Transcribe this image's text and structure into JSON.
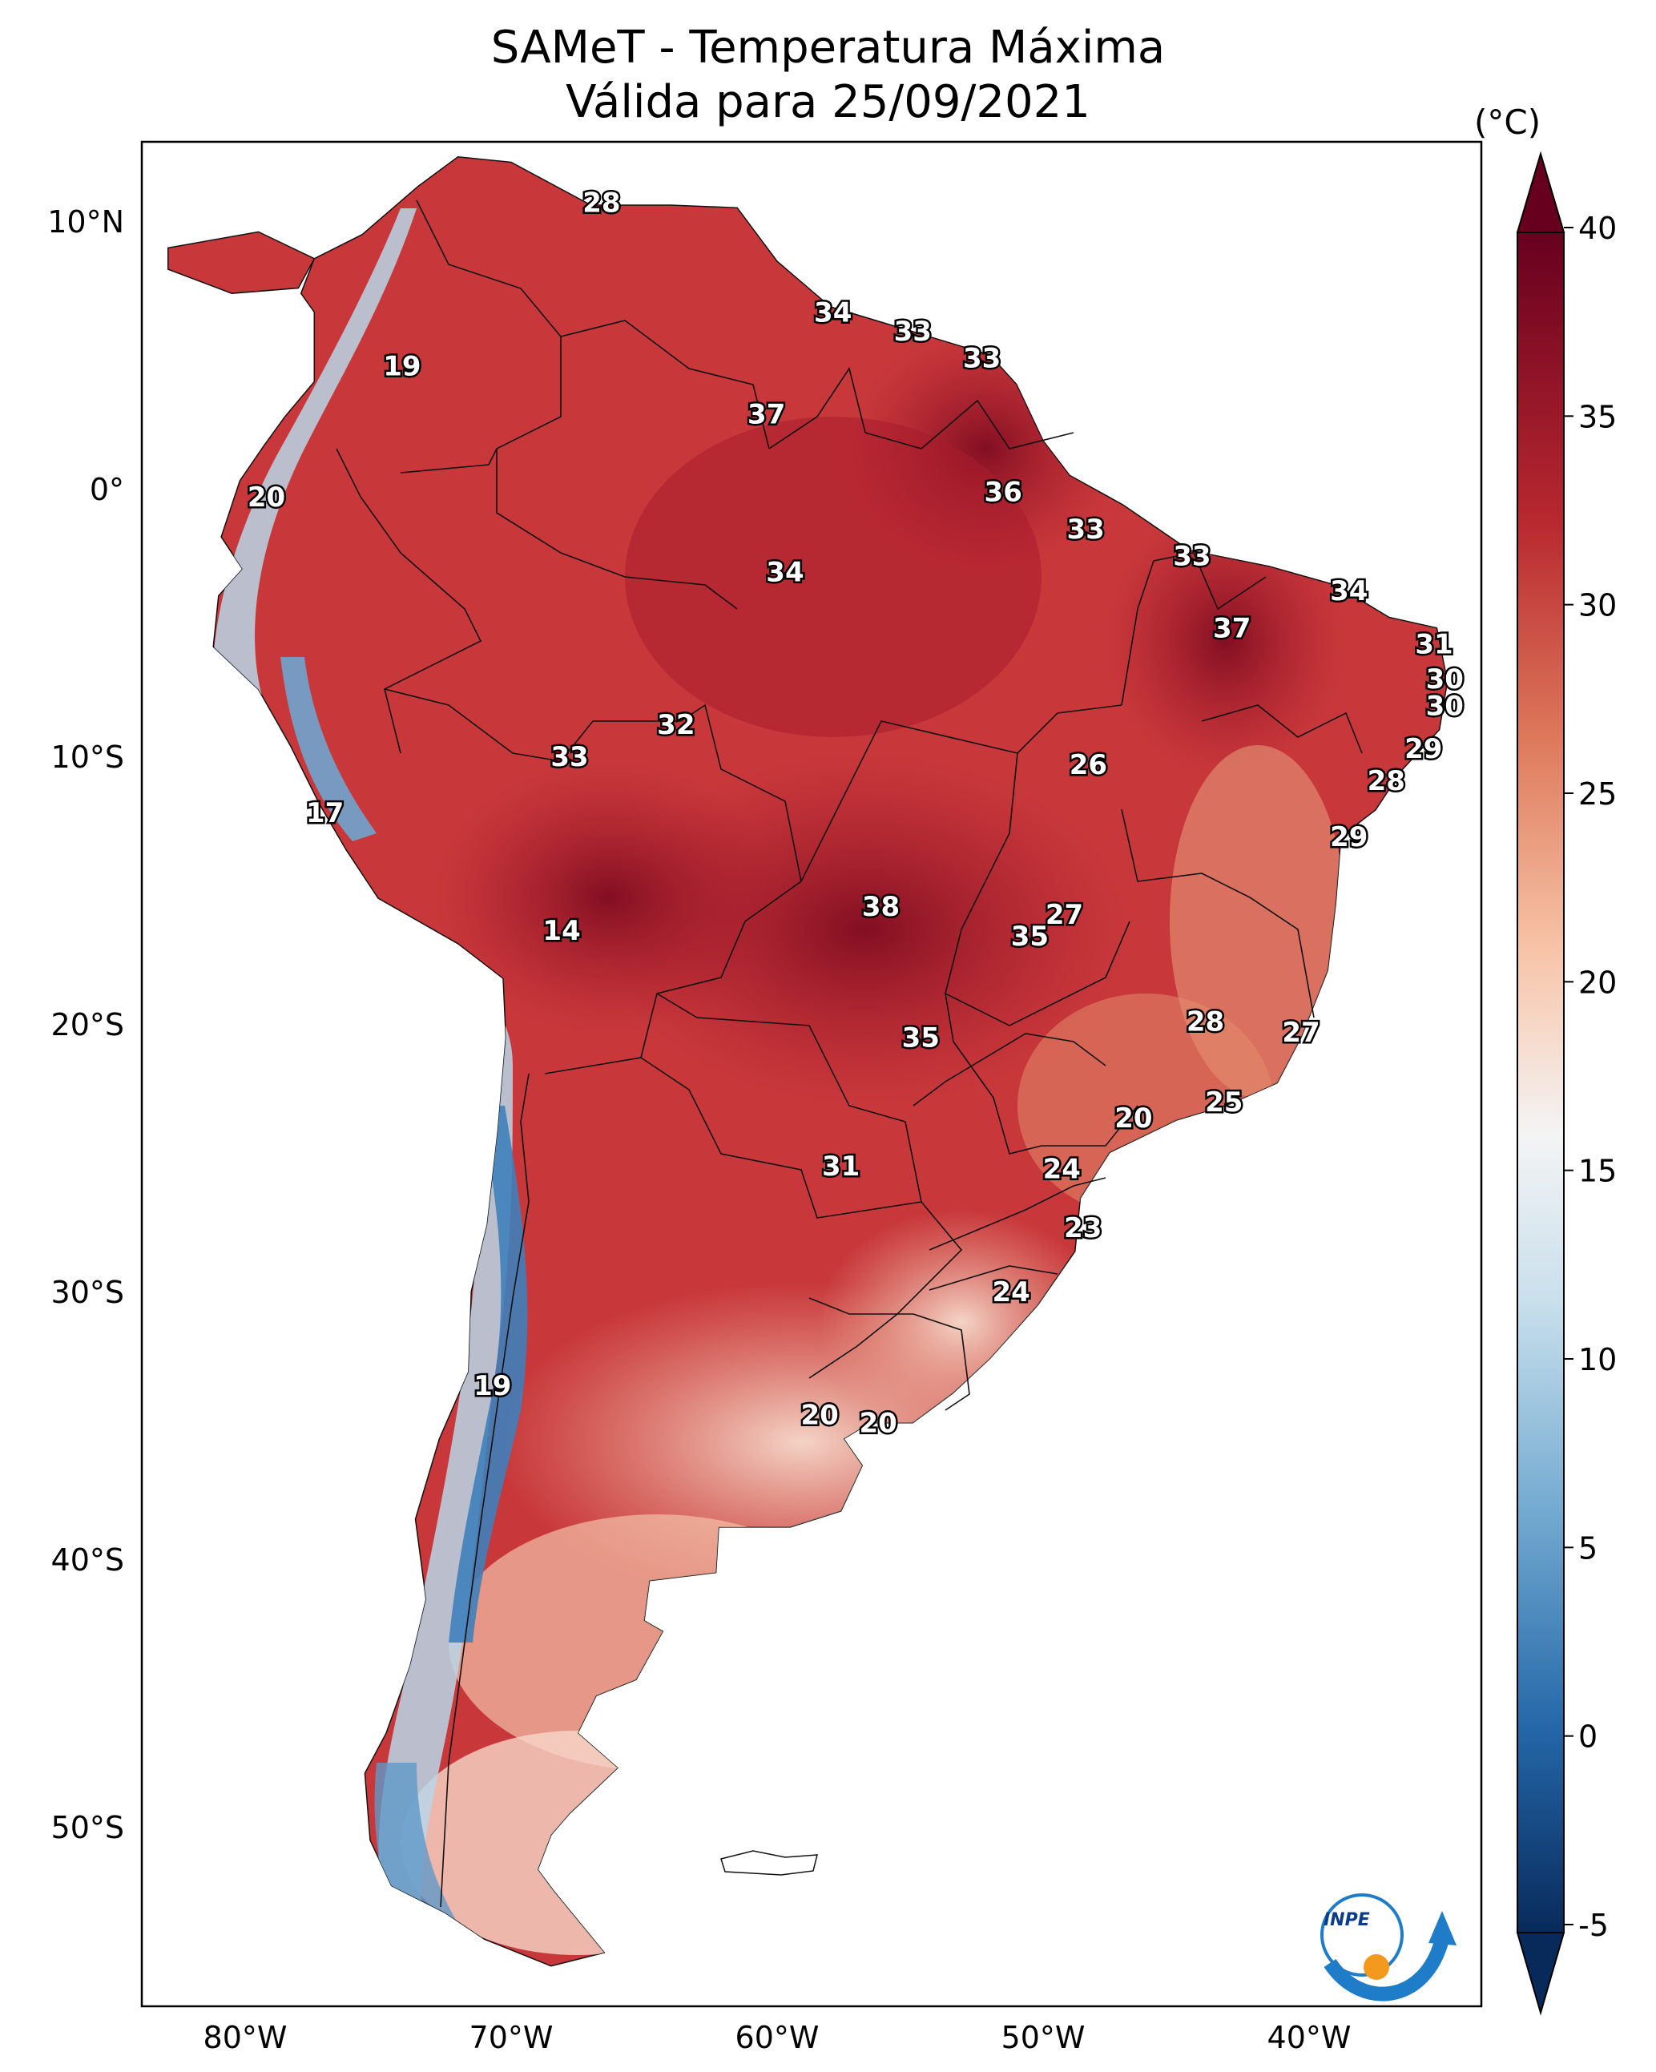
{
  "title": {
    "line1": "SAMeT - Temperatura Máxima",
    "line2": "Válida para 25/09/2021"
  },
  "colorbar": {
    "unit": "(°C)",
    "ticks": [
      "40",
      "35",
      "30",
      "25",
      "20",
      "15",
      "10",
      "5",
      "0",
      "-5"
    ],
    "range": [
      -5,
      40
    ],
    "colormap": "RdBu_r",
    "colors": {
      "low": "#0b2e60",
      "mid": "#f5f5f5",
      "high": "#6b0018"
    }
  },
  "axes": {
    "lat_labels": [
      "10°N",
      "0°",
      "10°S",
      "20°S",
      "30°S",
      "40°S",
      "50°S"
    ],
    "lon_labels": [
      "80°W",
      "70°W",
      "60°W",
      "50°W",
      "40°W"
    ]
  },
  "station_values": [
    {
      "lon": -66.6,
      "lat": 10.7,
      "value": "28"
    },
    {
      "lon": -57.9,
      "lat": 6.6,
      "value": "34"
    },
    {
      "lon": -54.9,
      "lat": 5.9,
      "value": "33"
    },
    {
      "lon": -52.3,
      "lat": 4.9,
      "value": "33"
    },
    {
      "lon": -74.1,
      "lat": 4.6,
      "value": "19"
    },
    {
      "lon": -60.4,
      "lat": 2.8,
      "value": "37"
    },
    {
      "lon": -51.5,
      "lat": -0.1,
      "value": "36"
    },
    {
      "lon": -79.2,
      "lat": -0.3,
      "value": "20"
    },
    {
      "lon": -48.4,
      "lat": -1.5,
      "value": "33"
    },
    {
      "lon": -44.4,
      "lat": -2.5,
      "value": "33"
    },
    {
      "lon": -59.7,
      "lat": -3.1,
      "value": "34"
    },
    {
      "lon": -38.5,
      "lat": -3.8,
      "value": "34"
    },
    {
      "lon": -42.9,
      "lat": -5.2,
      "value": "37"
    },
    {
      "lon": -35.3,
      "lat": -5.8,
      "value": "31"
    },
    {
      "lon": -34.9,
      "lat": -7.1,
      "value": "30"
    },
    {
      "lon": -34.9,
      "lat": -8.1,
      "value": "30"
    },
    {
      "lon": -63.8,
      "lat": -8.8,
      "value": "32"
    },
    {
      "lon": -35.7,
      "lat": -9.7,
      "value": "29"
    },
    {
      "lon": -67.8,
      "lat": -10.0,
      "value": "33"
    },
    {
      "lon": -48.3,
      "lat": -10.3,
      "value": "26"
    },
    {
      "lon": -37.1,
      "lat": -10.9,
      "value": "28"
    },
    {
      "lon": -77.0,
      "lat": -12.1,
      "value": "17"
    },
    {
      "lon": -38.5,
      "lat": -13.0,
      "value": "29"
    },
    {
      "lon": -56.1,
      "lat": -15.6,
      "value": "38"
    },
    {
      "lon": -49.2,
      "lat": -15.9,
      "value": "27"
    },
    {
      "lon": -50.5,
      "lat": -16.7,
      "value": "35"
    },
    {
      "lon": -68.1,
      "lat": -16.5,
      "value": "14"
    },
    {
      "lon": -43.9,
      "lat": -19.9,
      "value": "28"
    },
    {
      "lon": -40.3,
      "lat": -20.3,
      "value": "27"
    },
    {
      "lon": -54.6,
      "lat": -20.5,
      "value": "35"
    },
    {
      "lon": -43.2,
      "lat": -22.9,
      "value": "25"
    },
    {
      "lon": -46.6,
      "lat": -23.5,
      "value": "20"
    },
    {
      "lon": -49.3,
      "lat": -25.4,
      "value": "24"
    },
    {
      "lon": -57.6,
      "lat": -25.3,
      "value": "31"
    },
    {
      "lon": -48.5,
      "lat": -27.6,
      "value": "23"
    },
    {
      "lon": -51.2,
      "lat": -30.0,
      "value": "24"
    },
    {
      "lon": -70.7,
      "lat": -33.5,
      "value": "19"
    },
    {
      "lon": -58.4,
      "lat": -34.6,
      "value": "20"
    },
    {
      "lon": -56.2,
      "lat": -34.9,
      "value": "20"
    }
  ],
  "logo": {
    "text": "INPE"
  }
}
